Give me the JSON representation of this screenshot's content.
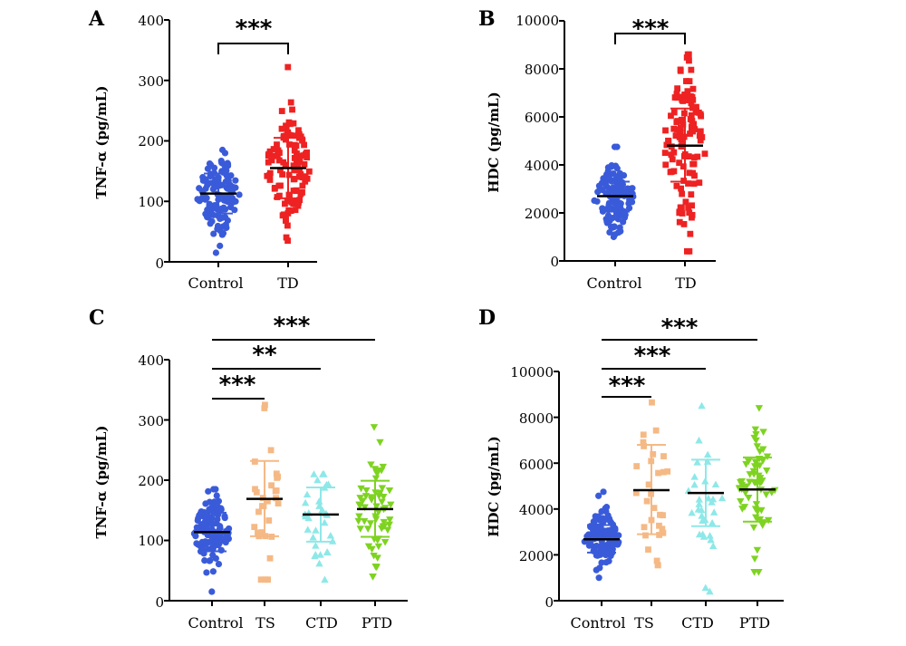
{
  "figure": {
    "panels": [
      {
        "letter": "A",
        "ylabel": "TNF-α (pg/mL)",
        "yticks": [
          "0",
          "100",
          "200",
          "300",
          "400"
        ],
        "categories": [
          "Control",
          "TD"
        ],
        "significance": [
          "***"
        ]
      },
      {
        "letter": "B",
        "ylabel": "HDC (pg/mL)",
        "yticks": [
          "0",
          "2000",
          "4000",
          "6000",
          "8000",
          "10000"
        ],
        "categories": [
          "Control",
          "TD"
        ],
        "significance": [
          "***"
        ]
      },
      {
        "letter": "C",
        "ylabel": "TNF-α (pg/mL)",
        "yticks": [
          "0",
          "100",
          "200",
          "300",
          "400"
        ],
        "categories": [
          "Control",
          "TS",
          "CTD",
          "PTD"
        ],
        "significance": [
          "***",
          "**",
          "***"
        ]
      },
      {
        "letter": "D",
        "ylabel": "HDC (pg/mL)",
        "yticks": [
          "0",
          "2000",
          "4000",
          "6000",
          "8000",
          "10000"
        ],
        "categories": [
          "Control",
          "TS",
          "CTD",
          "PTD"
        ],
        "significance": [
          "***",
          "***",
          "***"
        ]
      }
    ]
  },
  "chart_data": [
    {
      "type": "scatter",
      "panel": "A",
      "ylabel": "TNF-α (pg/mL)",
      "ylim": [
        0,
        400
      ],
      "categories": [
        "Control",
        "TD"
      ],
      "series": [
        {
          "category": "Control",
          "marker": "circle",
          "color": "#3a5bd9",
          "mean": 113,
          "sd_low": 80,
          "sd_high": 146,
          "n": 120,
          "min": 15,
          "max": 185
        },
        {
          "category": "TD",
          "marker": "square",
          "color": "#ee2222",
          "mean": 155,
          "sd_low": 105,
          "sd_high": 205,
          "n": 115,
          "min": 35,
          "max": 322
        }
      ],
      "comparisons": [
        {
          "from": "Control",
          "to": "TD",
          "label": "***"
        }
      ]
    },
    {
      "type": "scatter",
      "panel": "B",
      "ylabel": "HDC (pg/mL)",
      "ylim": [
        0,
        10000
      ],
      "categories": [
        "Control",
        "TD"
      ],
      "series": [
        {
          "category": "Control",
          "marker": "circle",
          "color": "#3a5bd9",
          "mean": 2700,
          "sd_low": 2050,
          "sd_high": 3300,
          "n": 120,
          "min": 1000,
          "max": 4750
        },
        {
          "category": "TD",
          "marker": "square",
          "color": "#ee2222",
          "mean": 4800,
          "sd_low": 3300,
          "sd_high": 6350,
          "n": 115,
          "min": 400,
          "max": 8600
        }
      ],
      "comparisons": [
        {
          "from": "Control",
          "to": "TD",
          "label": "***"
        }
      ]
    },
    {
      "type": "scatter",
      "panel": "C",
      "ylabel": "TNF-α (pg/mL)",
      "ylim": [
        0,
        400
      ],
      "categories": [
        "Control",
        "TS",
        "CTD",
        "PTD"
      ],
      "series": [
        {
          "category": "Control",
          "marker": "circle",
          "color": "#3a5bd9",
          "mean": 114,
          "sd_low": 82,
          "sd_high": 146,
          "n": 120,
          "min": 15,
          "max": 185
        },
        {
          "category": "TS",
          "marker": "square",
          "color": "#f5b985",
          "mean": 169,
          "sd_low": 107,
          "sd_high": 232,
          "n": 30,
          "min": 35,
          "max": 325
        },
        {
          "category": "CTD",
          "marker": "triangle-up",
          "color": "#8ee8e8",
          "mean": 143,
          "sd_low": 98,
          "sd_high": 188,
          "n": 32,
          "min": 35,
          "max": 210
        },
        {
          "category": "PTD",
          "marker": "triangle-down",
          "color": "#7ed321",
          "mean": 152,
          "sd_low": 106,
          "sd_high": 199,
          "n": 60,
          "min": 40,
          "max": 288
        }
      ],
      "comparisons": [
        {
          "from": "Control",
          "to": "TS",
          "label": "***"
        },
        {
          "from": "Control",
          "to": "CTD",
          "label": "**"
        },
        {
          "from": "Control",
          "to": "PTD",
          "label": "***"
        }
      ]
    },
    {
      "type": "scatter",
      "panel": "D",
      "ylabel": "HDC (pg/mL)",
      "ylim": [
        0,
        10000
      ],
      "categories": [
        "Control",
        "TS",
        "CTD",
        "PTD"
      ],
      "series": [
        {
          "category": "Control",
          "marker": "circle",
          "color": "#3a5bd9",
          "mean": 2680,
          "sd_low": 2100,
          "sd_high": 3300,
          "n": 120,
          "min": 1000,
          "max": 4750
        },
        {
          "category": "TS",
          "marker": "square",
          "color": "#f5b985",
          "mean": 4820,
          "sd_low": 2900,
          "sd_high": 6800,
          "n": 30,
          "min": 1550,
          "max": 8650
        },
        {
          "category": "CTD",
          "marker": "triangle-up",
          "color": "#8ee8e8",
          "mean": 4700,
          "sd_low": 3250,
          "sd_high": 6150,
          "n": 32,
          "min": 400,
          "max": 8500
        },
        {
          "category": "PTD",
          "marker": "triangle-down",
          "color": "#7ed321",
          "mean": 4850,
          "sd_low": 3450,
          "sd_high": 6250,
          "n": 60,
          "min": 1250,
          "max": 8400
        }
      ],
      "comparisons": [
        {
          "from": "Control",
          "to": "TS",
          "label": "***"
        },
        {
          "from": "Control",
          "to": "CTD",
          "label": "***"
        },
        {
          "from": "Control",
          "to": "PTD",
          "label": "***"
        }
      ]
    }
  ]
}
